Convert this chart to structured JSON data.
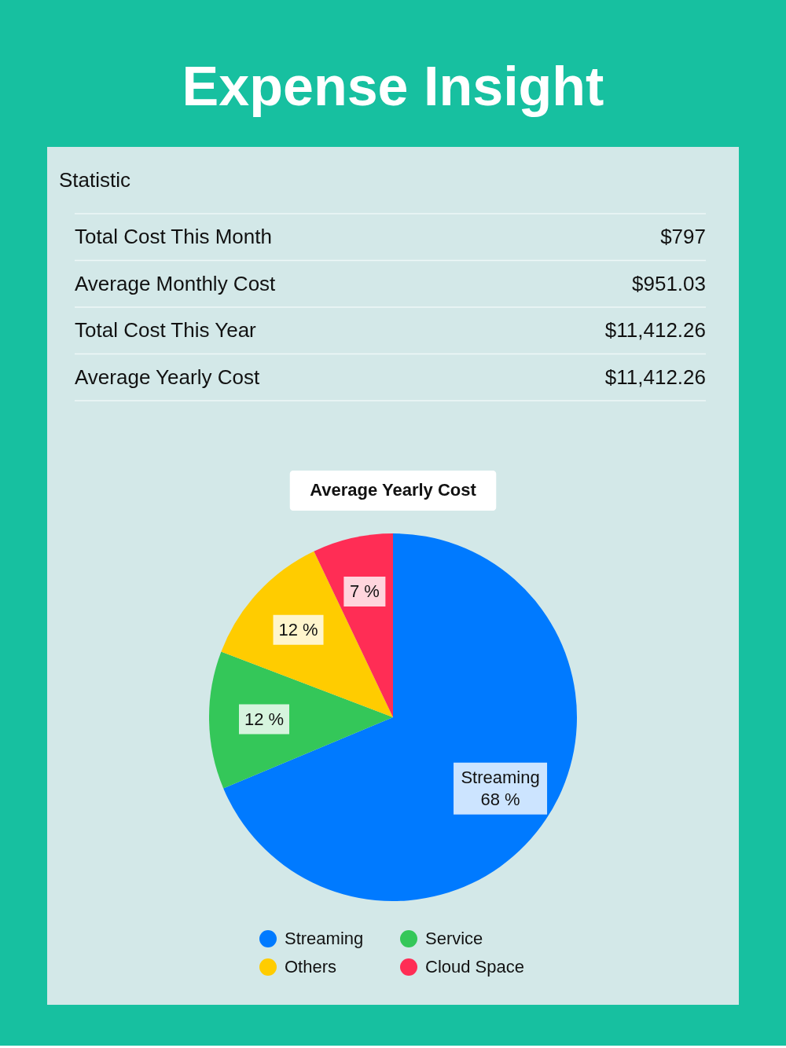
{
  "chart_data": [
    {
      "type": "other",
      "title": "Expense Insight",
      "subtitle": "Statistic",
      "categories": [
        "Total Cost This Month",
        "Average Monthly Cost",
        "Total Cost This Year",
        "Average Yearly Cost"
      ],
      "value_labels": [
        "$797",
        "$951.03",
        "$11,412.26",
        "$11,412.26"
      ]
    },
    {
      "type": "pie",
      "title": "Average Yearly Cost",
      "categories": [
        "Streaming",
        "Service",
        "Others",
        "Cloud Space"
      ],
      "values": [
        68,
        12,
        12,
        7
      ],
      "colors": [
        "#007aff",
        "#34c759",
        "#ffcc00",
        "#ff2d55"
      ],
      "value_labels": [
        "Streaming\n68 %",
        "12 %",
        "12 %",
        "7 %"
      ],
      "legend": "bottom"
    }
  ]
}
